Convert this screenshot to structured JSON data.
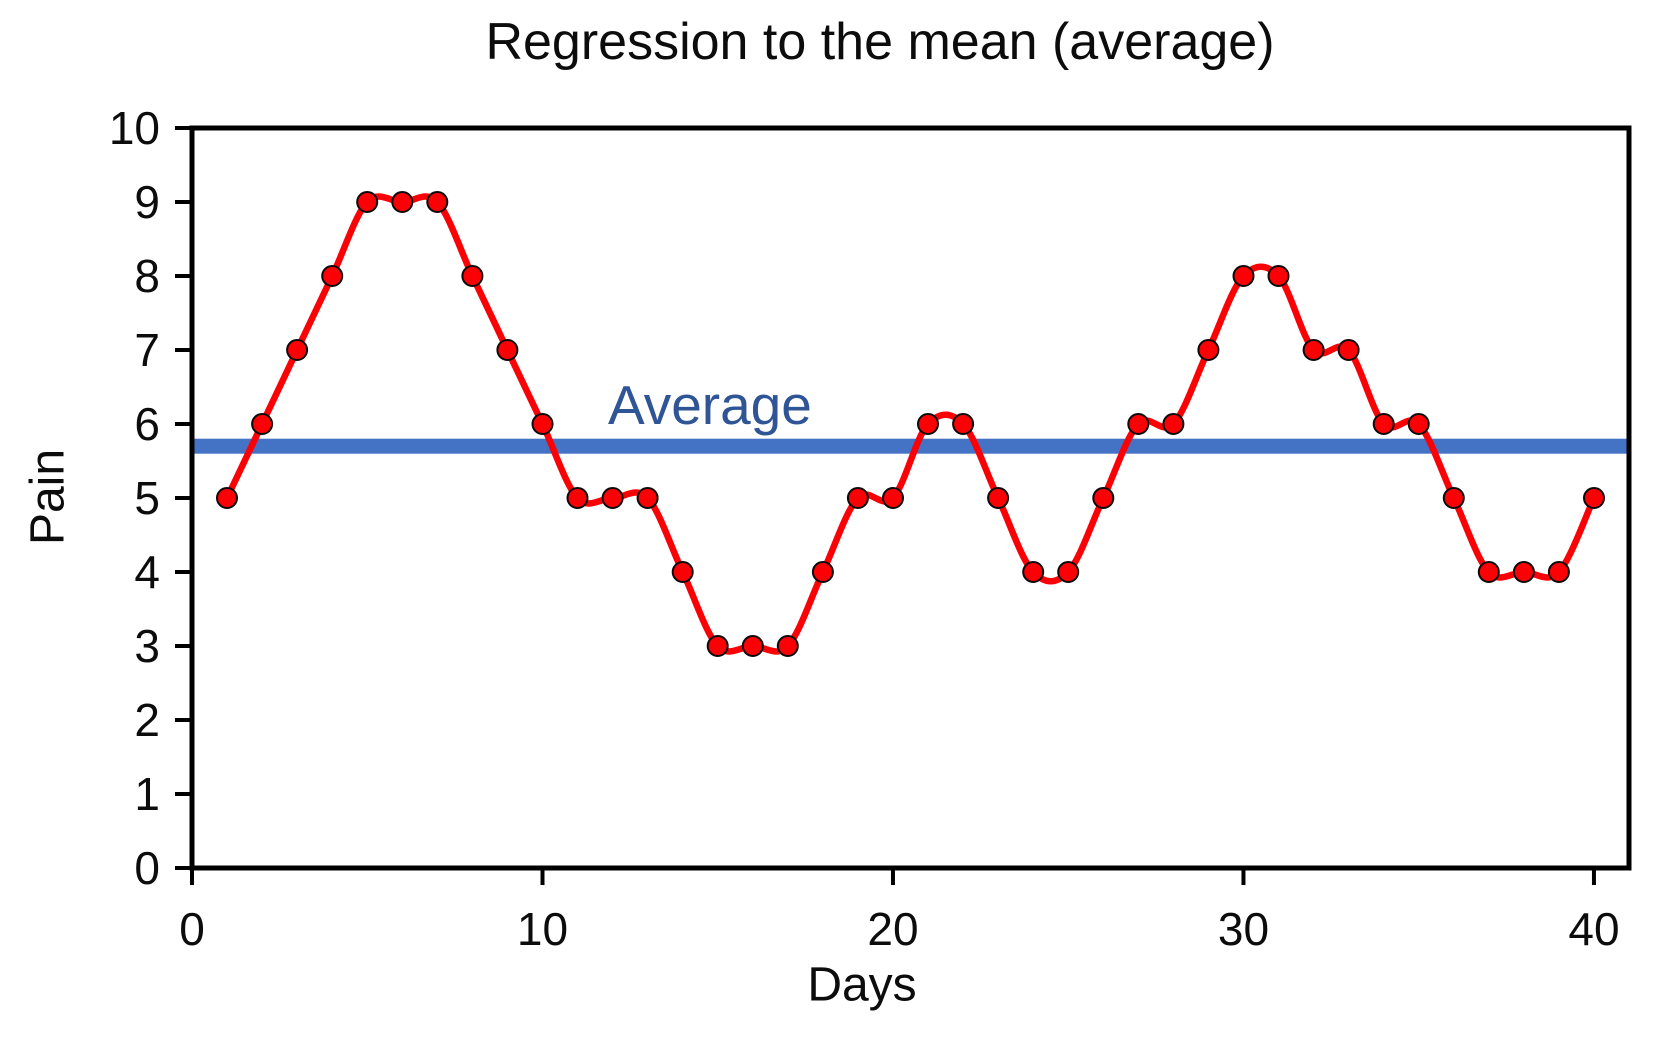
{
  "chart_data": {
    "type": "line",
    "title": "Regression to the mean (average)",
    "xlabel": "Days",
    "ylabel": "Pain",
    "x": [
      1,
      2,
      3,
      4,
      5,
      6,
      7,
      8,
      9,
      10,
      11,
      12,
      13,
      14,
      15,
      16,
      17,
      18,
      19,
      20,
      21,
      22,
      23,
      24,
      25,
      26,
      27,
      28,
      29,
      30,
      31,
      32,
      33,
      34,
      35,
      36,
      37,
      38,
      39,
      40
    ],
    "series": [
      {
        "name": "Pain",
        "color": "#fb0005",
        "marker": "circle",
        "marker_outline": "#0b0b0b",
        "smooth": true,
        "values": [
          5,
          6,
          7,
          8,
          9,
          9,
          9,
          8,
          7,
          6,
          5,
          5,
          5,
          4,
          3,
          3,
          3,
          4,
          5,
          5,
          6,
          6,
          5,
          4,
          4,
          5,
          6,
          6,
          7,
          8,
          8,
          7,
          7,
          6,
          6,
          5,
          4,
          4,
          4,
          5
        ]
      }
    ],
    "reference_line": {
      "label": "Average",
      "value": 5.7,
      "color": "#4472c4",
      "label_color": "#2f5597"
    },
    "xlim": [
      0,
      41
    ],
    "ylim": [
      0,
      10
    ],
    "xticks": [
      0,
      10,
      20,
      30,
      40
    ],
    "yticks": [
      0,
      1,
      2,
      3,
      4,
      5,
      6,
      7,
      8,
      9,
      10
    ],
    "grid": false,
    "legend": "none",
    "frame_color": "#000000"
  }
}
